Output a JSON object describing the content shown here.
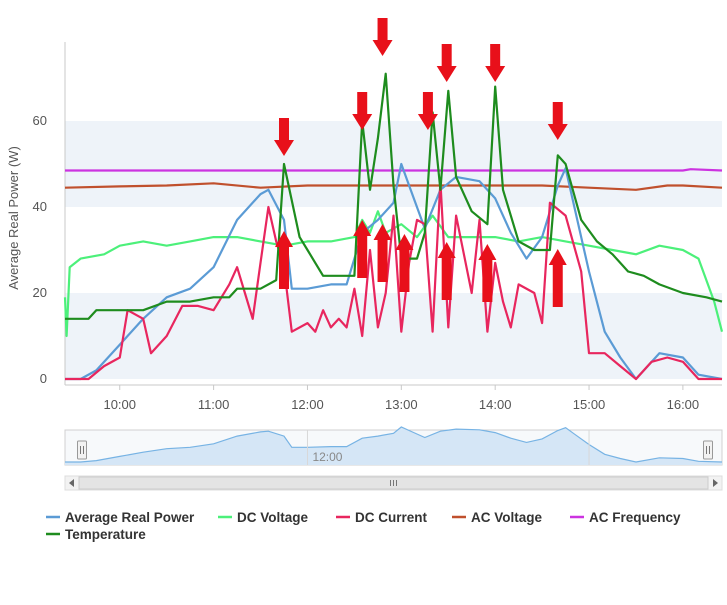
{
  "chart_data": {
    "type": "line",
    "title": "",
    "xlabel": "",
    "ylabel": "Average Real Power (W)",
    "xlim": [
      "09:25",
      "16:25"
    ],
    "ylim": [
      0,
      80
    ],
    "y_ticks": [
      "0",
      "20",
      "40",
      "60"
    ],
    "x_ticks": [
      "10:00",
      "11:00",
      "12:00",
      "13:00",
      "14:00",
      "15:00",
      "16:00"
    ],
    "grid": "horizontal bands",
    "legend_position": "bottom",
    "series": [
      {
        "name": "Average Real Power",
        "color": "#5b9bd5",
        "points": [
          [
            "09:25",
            0
          ],
          [
            "09:35",
            0
          ],
          [
            "09:45",
            2
          ],
          [
            "10:00",
            8
          ],
          [
            "10:15",
            14
          ],
          [
            "10:30",
            19
          ],
          [
            "10:45",
            21
          ],
          [
            "11:00",
            26
          ],
          [
            "11:15",
            37
          ],
          [
            "11:30",
            43
          ],
          [
            "11:35",
            44
          ],
          [
            "11:45",
            37
          ],
          [
            "11:50",
            21
          ],
          [
            "12:00",
            21
          ],
          [
            "12:15",
            22
          ],
          [
            "12:25",
            22
          ],
          [
            "12:35",
            34
          ],
          [
            "12:45",
            37
          ],
          [
            "12:55",
            41
          ],
          [
            "13:00",
            50
          ],
          [
            "13:05",
            45
          ],
          [
            "13:15",
            35
          ],
          [
            "13:25",
            44
          ],
          [
            "13:35",
            47
          ],
          [
            "13:50",
            46
          ],
          [
            "14:00",
            42
          ],
          [
            "14:10",
            34
          ],
          [
            "14:20",
            28
          ],
          [
            "14:30",
            33
          ],
          [
            "14:40",
            45
          ],
          [
            "14:45",
            49
          ],
          [
            "14:50",
            41
          ],
          [
            "15:00",
            25
          ],
          [
            "15:10",
            11
          ],
          [
            "15:20",
            5
          ],
          [
            "15:30",
            0
          ],
          [
            "15:45",
            6
          ],
          [
            "16:00",
            5
          ],
          [
            "16:10",
            1
          ],
          [
            "16:25",
            0
          ]
        ]
      },
      {
        "name": "DC Voltage",
        "color": "#4cf07a",
        "points": [
          [
            "09:25",
            19
          ],
          [
            "09:26",
            10
          ],
          [
            "09:28",
            26
          ],
          [
            "09:35",
            28
          ],
          [
            "09:50",
            29
          ],
          [
            "10:00",
            31
          ],
          [
            "10:15",
            32
          ],
          [
            "10:30",
            31
          ],
          [
            "10:45",
            32
          ],
          [
            "11:00",
            33
          ],
          [
            "11:15",
            33
          ],
          [
            "11:30",
            32
          ],
          [
            "11:45",
            31
          ],
          [
            "12:00",
            32
          ],
          [
            "12:15",
            32
          ],
          [
            "12:30",
            33
          ],
          [
            "12:35",
            37
          ],
          [
            "12:40",
            34
          ],
          [
            "12:45",
            39
          ],
          [
            "12:50",
            34
          ],
          [
            "13:00",
            36
          ],
          [
            "13:10",
            33
          ],
          [
            "13:20",
            38
          ],
          [
            "13:30",
            33
          ],
          [
            "13:45",
            33
          ],
          [
            "14:00",
            33
          ],
          [
            "14:15",
            32
          ],
          [
            "14:30",
            33
          ],
          [
            "14:45",
            32
          ],
          [
            "15:00",
            31
          ],
          [
            "15:15",
            30
          ],
          [
            "15:30",
            29
          ],
          [
            "15:45",
            31
          ],
          [
            "16:00",
            30
          ],
          [
            "16:10",
            28
          ],
          [
            "16:20",
            18
          ],
          [
            "16:25",
            11
          ]
        ]
      },
      {
        "name": "DC Current",
        "color": "#e8265e",
        "points": [
          [
            "09:25",
            0
          ],
          [
            "09:35",
            0
          ],
          [
            "09:40",
            0
          ],
          [
            "09:50",
            3
          ],
          [
            "10:00",
            5
          ],
          [
            "10:05",
            16
          ],
          [
            "10:15",
            14
          ],
          [
            "10:20",
            6
          ],
          [
            "10:30",
            10
          ],
          [
            "10:40",
            17
          ],
          [
            "10:50",
            17
          ],
          [
            "11:00",
            16
          ],
          [
            "11:10",
            22
          ],
          [
            "11:15",
            26
          ],
          [
            "11:20",
            20
          ],
          [
            "11:25",
            14
          ],
          [
            "11:30",
            27
          ],
          [
            "11:35",
            40
          ],
          [
            "11:40",
            32
          ],
          [
            "11:45",
            26
          ],
          [
            "11:50",
            11
          ],
          [
            "12:00",
            13
          ],
          [
            "12:05",
            11
          ],
          [
            "12:10",
            16
          ],
          [
            "12:15",
            12
          ],
          [
            "12:20",
            14
          ],
          [
            "12:25",
            12
          ],
          [
            "12:30",
            21
          ],
          [
            "12:35",
            10
          ],
          [
            "12:40",
            30
          ],
          [
            "12:45",
            12
          ],
          [
            "12:50",
            20
          ],
          [
            "12:55",
            38
          ],
          [
            "13:00",
            11
          ],
          [
            "13:05",
            27
          ],
          [
            "13:10",
            37
          ],
          [
            "13:15",
            36
          ],
          [
            "13:20",
            11
          ],
          [
            "13:25",
            46
          ],
          [
            "13:30",
            12
          ],
          [
            "13:35",
            38
          ],
          [
            "13:40",
            29
          ],
          [
            "13:45",
            20
          ],
          [
            "13:50",
            37
          ],
          [
            "13:55",
            11
          ],
          [
            "14:00",
            27
          ],
          [
            "14:05",
            18
          ],
          [
            "14:10",
            12
          ],
          [
            "14:15",
            22
          ],
          [
            "14:25",
            20
          ],
          [
            "14:30",
            13
          ],
          [
            "14:35",
            41
          ],
          [
            "14:45",
            38
          ],
          [
            "14:55",
            25
          ],
          [
            "15:00",
            6
          ],
          [
            "15:10",
            6
          ],
          [
            "15:20",
            3
          ],
          [
            "15:30",
            0
          ],
          [
            "15:40",
            4
          ],
          [
            "15:50",
            5
          ],
          [
            "16:00",
            4
          ],
          [
            "16:10",
            0
          ],
          [
            "16:25",
            0
          ]
        ]
      },
      {
        "name": "AC Voltage",
        "color": "#c0502d",
        "points": [
          [
            "09:25",
            44.5
          ],
          [
            "10:00",
            44.8
          ],
          [
            "10:30",
            45
          ],
          [
            "11:00",
            45.5
          ],
          [
            "11:30",
            44.5
          ],
          [
            "12:00",
            45
          ],
          [
            "12:30",
            45
          ],
          [
            "13:00",
            45
          ],
          [
            "13:30",
            45
          ],
          [
            "14:00",
            45
          ],
          [
            "14:30",
            45
          ],
          [
            "15:00",
            44.5
          ],
          [
            "15:30",
            44
          ],
          [
            "15:50",
            45
          ],
          [
            "16:00",
            45
          ],
          [
            "16:25",
            44.5
          ]
        ]
      },
      {
        "name": "AC Frequency",
        "color": "#cc33e0",
        "points": [
          [
            "09:25",
            48.5
          ],
          [
            "10:00",
            48.5
          ],
          [
            "11:00",
            48.5
          ],
          [
            "12:00",
            48.5
          ],
          [
            "13:00",
            48.5
          ],
          [
            "14:00",
            48.5
          ],
          [
            "15:00",
            48.5
          ],
          [
            "16:00",
            48.5
          ],
          [
            "16:05",
            48.8
          ],
          [
            "16:25",
            48.5
          ]
        ]
      },
      {
        "name": "Temperature",
        "color": "#1e8c1e",
        "points": [
          [
            "09:25",
            14
          ],
          [
            "09:40",
            14
          ],
          [
            "09:45",
            16
          ],
          [
            "10:00",
            16
          ],
          [
            "10:15",
            16
          ],
          [
            "10:30",
            18
          ],
          [
            "10:45",
            18
          ],
          [
            "11:00",
            19
          ],
          [
            "11:10",
            19
          ],
          [
            "11:15",
            21
          ],
          [
            "11:30",
            21
          ],
          [
            "11:40",
            23
          ],
          [
            "11:45",
            50
          ],
          [
            "11:55",
            33
          ],
          [
            "12:00",
            30
          ],
          [
            "12:05",
            27
          ],
          [
            "12:10",
            24
          ],
          [
            "12:30",
            24
          ],
          [
            "12:35",
            60
          ],
          [
            "12:40",
            44
          ],
          [
            "12:45",
            56
          ],
          [
            "12:50",
            71
          ],
          [
            "12:55",
            45
          ],
          [
            "13:00",
            28
          ],
          [
            "13:10",
            28
          ],
          [
            "13:15",
            34
          ],
          [
            "13:20",
            62
          ],
          [
            "13:25",
            44
          ],
          [
            "13:30",
            67
          ],
          [
            "13:35",
            47
          ],
          [
            "13:45",
            39
          ],
          [
            "13:55",
            36
          ],
          [
            "14:00",
            68
          ],
          [
            "14:05",
            44
          ],
          [
            "14:15",
            32
          ],
          [
            "14:25",
            30
          ],
          [
            "14:35",
            30
          ],
          [
            "14:40",
            52
          ],
          [
            "14:45",
            50
          ],
          [
            "14:55",
            37
          ],
          [
            "15:05",
            32
          ],
          [
            "15:15",
            29
          ],
          [
            "15:25",
            25
          ],
          [
            "15:35",
            24
          ],
          [
            "15:45",
            22
          ],
          [
            "16:00",
            20
          ],
          [
            "16:15",
            19
          ],
          [
            "16:25",
            18
          ]
        ]
      }
    ],
    "annotations": {
      "down_arrows_at": [
        "11:45",
        "12:35",
        "12:48",
        "13:17",
        "13:29",
        "14:00",
        "14:40"
      ],
      "up_arrows_at": [
        "11:45",
        "12:35",
        "12:48",
        "13:02",
        "13:29",
        "13:55",
        "14:40"
      ],
      "color": "#e8101a"
    },
    "navigator": {
      "center_label": "12:00",
      "fill": "#d5e6f6",
      "line": "#77b3e4"
    }
  }
}
